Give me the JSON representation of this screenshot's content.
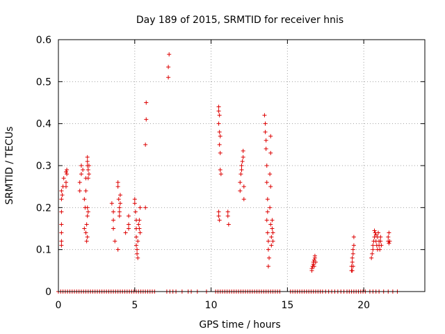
{
  "chart_data": {
    "type": "scatter",
    "title": "Day 189 of 2015, SRMTID for receiver hnis",
    "xlabel": "GPS time / hours",
    "ylabel": "SRMTID / TECUs",
    "xlim": [
      0,
      24
    ],
    "ylim": [
      0,
      0.6
    ],
    "xticks": [
      0,
      5,
      10,
      15,
      20
    ],
    "yticks": [
      0,
      0.1,
      0.2,
      0.3,
      0.4,
      0.5,
      0.6
    ],
    "xtick_labels": [
      "0",
      "5",
      "10",
      "15",
      "20"
    ],
    "ytick_labels": [
      "0",
      "0.1",
      "0.2",
      "0.3",
      "0.4",
      "0.5",
      "0.6"
    ],
    "grid": true,
    "marker": "+",
    "color": "#dd0000",
    "series": [
      {
        "name": "SRMTID",
        "points": [
          [
            0.2,
            0.11
          ],
          [
            0.2,
            0.12
          ],
          [
            0.2,
            0.14
          ],
          [
            0.2,
            0.16
          ],
          [
            0.2,
            0.19
          ],
          [
            0.2,
            0.22
          ],
          [
            0.2,
            0.24
          ],
          [
            0.25,
            0.23
          ],
          [
            0.3,
            0.25
          ],
          [
            0.35,
            0.27
          ],
          [
            0.5,
            0.25
          ],
          [
            0.5,
            0.26
          ],
          [
            0.5,
            0.285
          ],
          [
            0.55,
            0.29
          ],
          [
            0.55,
            0.28
          ],
          [
            1.4,
            0.26
          ],
          [
            1.4,
            0.24
          ],
          [
            1.5,
            0.28
          ],
          [
            1.5,
            0.3
          ],
          [
            1.6,
            0.29
          ],
          [
            1.7,
            0.22
          ],
          [
            1.7,
            0.15
          ],
          [
            1.8,
            0.14
          ],
          [
            1.75,
            0.2
          ],
          [
            1.8,
            0.24
          ],
          [
            1.8,
            0.27
          ],
          [
            1.9,
            0.31
          ],
          [
            1.9,
            0.32
          ],
          [
            1.9,
            0.3
          ],
          [
            1.95,
            0.29
          ],
          [
            1.95,
            0.27
          ],
          [
            1.9,
            0.2
          ],
          [
            1.95,
            0.19
          ],
          [
            1.9,
            0.18
          ],
          [
            1.85,
            0.16
          ],
          [
            1.9,
            0.13
          ],
          [
            1.85,
            0.12
          ],
          [
            2.0,
            0.28
          ],
          [
            2.0,
            0.3
          ],
          [
            3.5,
            0.21
          ],
          [
            3.6,
            0.19
          ],
          [
            3.6,
            0.17
          ],
          [
            3.6,
            0.15
          ],
          [
            3.7,
            0.12
          ],
          [
            3.9,
            0.1
          ],
          [
            3.9,
            0.25
          ],
          [
            3.9,
            0.26
          ],
          [
            3.95,
            0.22
          ],
          [
            4.0,
            0.2
          ],
          [
            4.0,
            0.19
          ],
          [
            4.0,
            0.18
          ],
          [
            4.05,
            0.21
          ],
          [
            4.05,
            0.23
          ],
          [
            4.4,
            0.14
          ],
          [
            4.6,
            0.15
          ],
          [
            4.6,
            0.18
          ],
          [
            4.6,
            0.16
          ],
          [
            5.0,
            0.22
          ],
          [
            5.0,
            0.21
          ],
          [
            5.05,
            0.19
          ],
          [
            5.1,
            0.17
          ],
          [
            5.1,
            0.15
          ],
          [
            5.1,
            0.13
          ],
          [
            5.1,
            0.11
          ],
          [
            5.15,
            0.1
          ],
          [
            5.15,
            0.09
          ],
          [
            5.2,
            0.08
          ],
          [
            5.2,
            0.12
          ],
          [
            5.25,
            0.16
          ],
          [
            5.3,
            0.17
          ],
          [
            5.35,
            0.2
          ],
          [
            5.3,
            0.15
          ],
          [
            5.35,
            0.14
          ],
          [
            5.7,
            0.2
          ],
          [
            5.7,
            0.35
          ],
          [
            5.75,
            0.41
          ],
          [
            5.75,
            0.45
          ],
          [
            7.2,
            0.51
          ],
          [
            7.2,
            0.535
          ],
          [
            7.25,
            0.565
          ],
          [
            10.5,
            0.44
          ],
          [
            10.5,
            0.43
          ],
          [
            10.55,
            0.42
          ],
          [
            10.5,
            0.4
          ],
          [
            10.55,
            0.38
          ],
          [
            10.6,
            0.37
          ],
          [
            10.55,
            0.35
          ],
          [
            10.6,
            0.33
          ],
          [
            10.6,
            0.29
          ],
          [
            10.65,
            0.28
          ],
          [
            10.5,
            0.19
          ],
          [
            10.5,
            0.18
          ],
          [
            10.55,
            0.17
          ],
          [
            11.1,
            0.19
          ],
          [
            11.1,
            0.18
          ],
          [
            11.15,
            0.16
          ],
          [
            11.9,
            0.24
          ],
          [
            11.9,
            0.26
          ],
          [
            11.95,
            0.28
          ],
          [
            12.0,
            0.29
          ],
          [
            12.0,
            0.3
          ],
          [
            12.05,
            0.31
          ],
          [
            12.1,
            0.32
          ],
          [
            12.1,
            0.335
          ],
          [
            12.15,
            0.25
          ],
          [
            12.15,
            0.22
          ],
          [
            13.5,
            0.42
          ],
          [
            13.55,
            0.4
          ],
          [
            13.55,
            0.38
          ],
          [
            13.6,
            0.36
          ],
          [
            13.6,
            0.34
          ],
          [
            13.65,
            0.3
          ],
          [
            13.65,
            0.26
          ],
          [
            13.7,
            0.22
          ],
          [
            13.7,
            0.19
          ],
          [
            13.65,
            0.17
          ],
          [
            13.7,
            0.14
          ],
          [
            13.75,
            0.12
          ],
          [
            13.75,
            0.1
          ],
          [
            13.8,
            0.08
          ],
          [
            13.75,
            0.06
          ],
          [
            13.9,
            0.37
          ],
          [
            13.9,
            0.33
          ],
          [
            13.85,
            0.28
          ],
          [
            13.9,
            0.25
          ],
          [
            13.85,
            0.2
          ],
          [
            13.9,
            0.16
          ],
          [
            13.95,
            0.13
          ],
          [
            13.95,
            0.11
          ],
          [
            14.0,
            0.17
          ],
          [
            14.0,
            0.15
          ],
          [
            14.05,
            0.14
          ],
          [
            14.05,
            0.12
          ],
          [
            16.6,
            0.05
          ],
          [
            16.6,
            0.055
          ],
          [
            16.65,
            0.06
          ],
          [
            16.7,
            0.065
          ],
          [
            16.7,
            0.07
          ],
          [
            16.75,
            0.075
          ],
          [
            16.8,
            0.08
          ],
          [
            16.8,
            0.085
          ],
          [
            16.85,
            0.07
          ],
          [
            16.75,
            0.06
          ],
          [
            19.2,
            0.05
          ],
          [
            19.2,
            0.06
          ],
          [
            19.25,
            0.07
          ],
          [
            19.25,
            0.08
          ],
          [
            19.3,
            0.09
          ],
          [
            19.3,
            0.1
          ],
          [
            19.35,
            0.11
          ],
          [
            19.35,
            0.13
          ],
          [
            19.3,
            0.06
          ],
          [
            19.25,
            0.05
          ],
          [
            20.5,
            0.08
          ],
          [
            20.55,
            0.09
          ],
          [
            20.6,
            0.1
          ],
          [
            20.6,
            0.11
          ],
          [
            20.65,
            0.12
          ],
          [
            20.7,
            0.13
          ],
          [
            20.7,
            0.145
          ],
          [
            20.75,
            0.14
          ],
          [
            20.8,
            0.135
          ],
          [
            20.8,
            0.12
          ],
          [
            20.85,
            0.11
          ],
          [
            20.9,
            0.1
          ],
          [
            20.9,
            0.13
          ],
          [
            20.95,
            0.14
          ],
          [
            21.0,
            0.12
          ],
          [
            21.0,
            0.11
          ],
          [
            21.05,
            0.1
          ],
          [
            21.1,
            0.13
          ],
          [
            21.1,
            0.12
          ],
          [
            21.15,
            0.11
          ],
          [
            21.6,
            0.12
          ],
          [
            21.6,
            0.13
          ],
          [
            21.65,
            0.14
          ],
          [
            21.65,
            0.115
          ],
          [
            21.7,
            0.12
          ]
        ]
      },
      {
        "name": "zero",
        "x": [
          0.0,
          0.15,
          0.3,
          0.45,
          0.6,
          0.75,
          0.9,
          1.05,
          1.2,
          1.35,
          1.5,
          1.65,
          1.8,
          1.95,
          2.1,
          2.25,
          2.4,
          2.55,
          2.7,
          2.85,
          3.0,
          3.15,
          3.3,
          3.45,
          3.6,
          3.75,
          3.9,
          4.05,
          4.2,
          4.35,
          4.5,
          4.65,
          4.8,
          4.95,
          5.1,
          5.25,
          5.4,
          5.55,
          5.7,
          5.85,
          6.0,
          6.15,
          6.3,
          7.1,
          7.3,
          7.5,
          7.7,
          8.1,
          8.5,
          8.7,
          9.1,
          9.7,
          10.3,
          10.45,
          10.6,
          10.75,
          10.9,
          11.05,
          11.2,
          11.35,
          11.5,
          11.65,
          11.8,
          11.95,
          12.1,
          12.25,
          12.4,
          12.55,
          12.7,
          12.85,
          13.0,
          13.15,
          13.3,
          13.45,
          13.6,
          13.75,
          13.9,
          14.05,
          14.2,
          14.35,
          14.5,
          15.2,
          15.35,
          15.5,
          15.65,
          15.8,
          15.95,
          16.1,
          16.25,
          16.4,
          16.55,
          16.7,
          16.85,
          17.0,
          17.15,
          17.3,
          17.5,
          17.7,
          17.9,
          18.1,
          18.3,
          18.5,
          18.7,
          18.9,
          19.05,
          19.2,
          19.35,
          19.5,
          19.65,
          19.8,
          19.95,
          20.1,
          20.4,
          20.6,
          20.8,
          21.0,
          21.3,
          21.6,
          21.9,
          22.2
        ]
      }
    ]
  }
}
